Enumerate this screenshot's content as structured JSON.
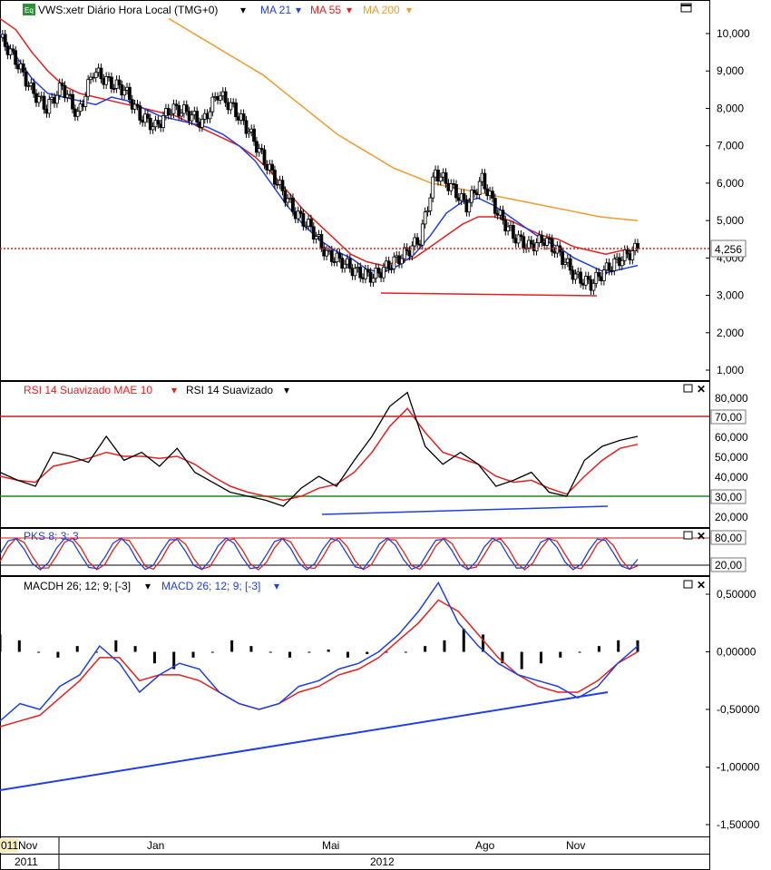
{
  "header": {
    "eq_badge": "Eq",
    "instrument": "VWS:xetr Diário Hora Local (TMG+0)",
    "ma": [
      {
        "label": "MA 21",
        "color": "#1f3fe6"
      },
      {
        "label": "MA 55",
        "color": "#e61f1f"
      },
      {
        "label": "MA 200",
        "color": "#f29a2e"
      }
    ]
  },
  "price_axis": {
    "ticks": [
      "10,000",
      "9,000",
      "8,000",
      "7,000",
      "6,000",
      "5,000",
      "4,000",
      "3,000",
      "2,000",
      "1,000"
    ],
    "tick_values": [
      10,
      9,
      8,
      7,
      6,
      5,
      4,
      3,
      2,
      1
    ],
    "last_price_label": "4,256",
    "last_price": 4.256
  },
  "rsi_panel": {
    "legend_smoothed_mae": "RSI 14 Suavizado MAE 10",
    "legend_smoothed": "RSI 14 Suavizado",
    "ticks": [
      "80,000",
      "70,00",
      "60,000",
      "50,000",
      "40,000",
      "30,00",
      "20,000"
    ],
    "upper_level": 70,
    "lower_level": 30
  },
  "pks_panel": {
    "legend": "PKS 8; 3; 3",
    "upper_label": "80,00",
    "lower_label": "20,00"
  },
  "macd_panel": {
    "legend_hist": "MACDH 26; 12; 9; [-3]",
    "legend_macd": "MACD 26; 12; 9; [-3]",
    "ticks": [
      "0,50000",
      "0,00000",
      "-0,50000",
      "-1,00000",
      "-1,50000"
    ],
    "tick_values": [
      0.5,
      0.0,
      -0.5,
      -1.0,
      -1.5
    ]
  },
  "time_axis": {
    "months": [
      "011",
      "Nov",
      "Jan",
      "Mai",
      "Ago",
      "Nov"
    ],
    "years": [
      "2011",
      "2012"
    ]
  },
  "chart_data": {
    "type": "line",
    "title": "VWS:xetr Diário Hora Local (TMG+0)",
    "series": [
      {
        "name": "VWS:xetr",
        "values": [
          9.9,
          9.3,
          8.5,
          8.0,
          8.6,
          7.8,
          9.0,
          8.7,
          8.5,
          7.8,
          7.5,
          8.0,
          7.9,
          7.6,
          8.4,
          8.0,
          7.4,
          6.6,
          5.9,
          5.2,
          4.8,
          4.1,
          3.9,
          3.6,
          3.5,
          3.8,
          4.1,
          4.5,
          6.3,
          5.9,
          5.4,
          6.1,
          5.2,
          4.6,
          4.3,
          4.5,
          4.1,
          3.5,
          3.3,
          3.7,
          4.0,
          4.256
        ]
      },
      {
        "name": "MA 21",
        "values": [
          10.0,
          9.4,
          8.8,
          8.4,
          8.3,
          8.2,
          8.1,
          8.3,
          8.2,
          8.0,
          7.8,
          7.7,
          7.6,
          7.5,
          7.3,
          7.0,
          6.6,
          6.0,
          5.4,
          4.9,
          4.5,
          4.2,
          4.0,
          3.7,
          3.6,
          3.8,
          4.1,
          4.6,
          5.2,
          5.5,
          5.6,
          5.4,
          5.1,
          4.8,
          4.5,
          4.3,
          4.0,
          3.8,
          3.6,
          3.7,
          3.8
        ]
      },
      {
        "name": "MA 55",
        "values": [
          10.4,
          10.1,
          9.5,
          9.0,
          8.6,
          8.4,
          8.3,
          8.2,
          8.1,
          8.0,
          7.9,
          7.8,
          7.6,
          7.4,
          7.2,
          7.0,
          6.7,
          6.3,
          5.8,
          5.3,
          4.9,
          4.5,
          4.1,
          3.9,
          3.8,
          3.9,
          4.0,
          4.3,
          4.6,
          4.9,
          5.1,
          5.1,
          5.0,
          4.8,
          4.6,
          4.5,
          4.3,
          4.2,
          4.1,
          4.2,
          4.2
        ]
      },
      {
        "name": "MA 200",
        "values": [
          null,
          null,
          null,
          null,
          null,
          null,
          null,
          null,
          null,
          10.4,
          10.1,
          9.8,
          9.5,
          9.2,
          8.9,
          8.5,
          8.1,
          7.7,
          7.3,
          7.0,
          6.7,
          6.4,
          6.2,
          6.0,
          5.9,
          5.8,
          5.7,
          5.6,
          5.5,
          5.4,
          5.3,
          5.2,
          5.1,
          5.05,
          5.0
        ]
      }
    ],
    "rsi": {
      "smoothed": [
        42,
        38,
        35,
        52,
        50,
        47,
        60,
        48,
        52,
        45,
        54,
        42,
        37,
        32,
        30,
        28,
        25,
        34,
        40,
        35,
        48,
        60,
        75,
        82,
        55,
        46,
        52,
        46,
        35,
        38,
        42,
        32,
        30,
        48,
        55,
        58,
        60
      ],
      "mae": [
        40,
        38,
        37,
        45,
        47,
        49,
        52,
        50,
        50,
        49,
        50,
        46,
        40,
        35,
        32,
        30,
        28,
        30,
        34,
        36,
        42,
        52,
        65,
        74,
        62,
        52,
        49,
        46,
        40,
        37,
        38,
        34,
        31,
        40,
        48,
        54,
        56
      ]
    },
    "macd": {
      "histogram": [
        0.15,
        0.1,
        0.0,
        -0.05,
        0.05,
        0.0,
        0.1,
        0.05,
        -0.1,
        -0.15,
        -0.05,
        0.0,
        0.1,
        0.05,
        0.0,
        -0.05,
        0.0,
        0.02,
        -0.05,
        -0.02,
        0.0,
        0.0,
        0.05,
        0.1,
        0.2,
        0.15,
        -0.1,
        -0.15,
        -0.1,
        -0.05,
        0.0,
        0.05,
        0.1,
        0.1
      ],
      "macd": [
        -0.6,
        -0.45,
        -0.5,
        -0.3,
        -0.2,
        0.05,
        -0.1,
        -0.35,
        -0.2,
        -0.1,
        -0.15,
        -0.35,
        -0.45,
        -0.5,
        -0.45,
        -0.3,
        -0.25,
        -0.15,
        -0.1,
        0.0,
        0.15,
        0.35,
        0.6,
        0.25,
        0.05,
        -0.1,
        -0.2,
        -0.25,
        -0.3,
        -0.4,
        -0.3,
        -0.1,
        0.05
      ],
      "signal": [
        -0.65,
        -0.6,
        -0.55,
        -0.4,
        -0.25,
        -0.05,
        -0.05,
        -0.25,
        -0.2,
        -0.2,
        -0.25,
        -0.35,
        -0.45,
        -0.5,
        -0.45,
        -0.35,
        -0.3,
        -0.2,
        -0.15,
        -0.05,
        0.1,
        0.25,
        0.45,
        0.35,
        0.15,
        -0.05,
        -0.2,
        -0.3,
        -0.35,
        -0.35,
        -0.25,
        -0.1,
        0.0
      ]
    },
    "ylim": [
      0.7,
      10.8
    ]
  }
}
